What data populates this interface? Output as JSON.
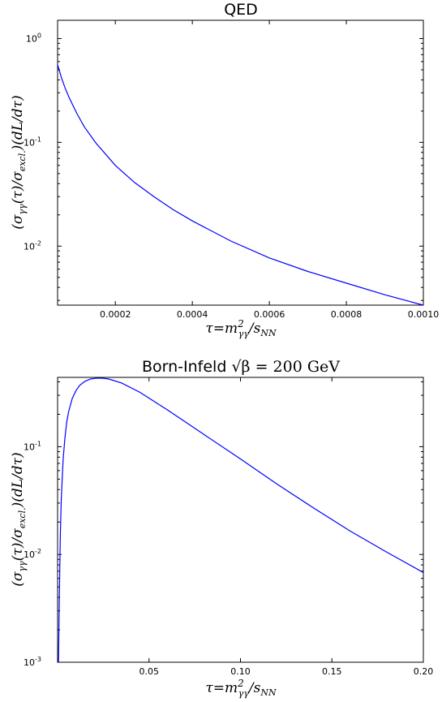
{
  "colors": {
    "series": "#0000ff",
    "frame": "#000000",
    "background": "#ffffff"
  },
  "chart_data": [
    {
      "type": "line",
      "title": "QED",
      "xlabel": "τ = m²γγ / sNN",
      "ylabel": "(σγγ(τ)/σexcl.)(dL/dτ)",
      "yscale": "log",
      "xlim": [
        5e-05,
        0.001
      ],
      "ylim": [
        0.0027,
        1.5
      ],
      "grid": false,
      "legend": "none",
      "x_ticks": [
        0.0002,
        0.0004,
        0.0006,
        0.0008,
        0.001
      ],
      "x_tick_labels": [
        "0.0002",
        "0.0004",
        "0.0006",
        "0.0008",
        "0.0010"
      ],
      "y_ticks": [
        0.01,
        0.1,
        1
      ],
      "y_tick_labels": [
        "10",
        "10",
        "10"
      ],
      "y_tick_exponents": [
        "-2",
        "-1",
        "0"
      ],
      "series": [
        {
          "color": "#0000ff",
          "x": [
            5e-05,
            6e-05,
            7e-05,
            8e-05,
            0.0001,
            0.00012,
            0.00015,
            0.0002,
            0.00025,
            0.0003,
            0.00035,
            0.0004,
            0.0005,
            0.0006,
            0.0007,
            0.0008,
            0.0009,
            0.001
          ],
          "y": [
            0.56,
            0.42,
            0.33,
            0.27,
            0.19,
            0.14,
            0.098,
            0.06,
            0.041,
            0.03,
            0.0225,
            0.0175,
            0.0112,
            0.0077,
            0.0057,
            0.0044,
            0.0034,
            0.0027
          ]
        }
      ]
    },
    {
      "type": "line",
      "title": "Born-Infeld",
      "title_math": "√β = 200 GeV",
      "xlabel": "τ = m²γγ / sNN",
      "ylabel": "(σγγ(τ)/σexcl.)(dL/dτ)",
      "yscale": "log",
      "xlim": [
        0,
        0.2
      ],
      "ylim": [
        0.001,
        0.44
      ],
      "grid": false,
      "legend": "none",
      "x_ticks": [
        0.05,
        0.1,
        0.15,
        0.2
      ],
      "x_tick_labels": [
        "0.05",
        "0.10",
        "0.15",
        "0.20"
      ],
      "y_ticks": [
        0.001,
        0.01,
        0.1
      ],
      "y_tick_labels": [
        "10",
        "10",
        "10"
      ],
      "y_tick_exponents": [
        "-3",
        "-2",
        "-1"
      ],
      "series": [
        {
          "color": "#0000ff",
          "x": [
            0.0005,
            0.001,
            0.0015,
            0.002,
            0.003,
            0.004,
            0.005,
            0.006,
            0.008,
            0.01,
            0.012,
            0.015,
            0.018,
            0.021,
            0.024,
            0.028,
            0.035,
            0.045,
            0.06,
            0.08,
            0.1,
            0.12,
            0.14,
            0.16,
            0.18,
            0.2
          ],
          "y": [
            0.001,
            0.0045,
            0.015,
            0.032,
            0.075,
            0.12,
            0.17,
            0.21,
            0.28,
            0.33,
            0.37,
            0.405,
            0.425,
            0.432,
            0.433,
            0.425,
            0.39,
            0.32,
            0.22,
            0.13,
            0.077,
            0.045,
            0.027,
            0.0165,
            0.0105,
            0.0068
          ]
        }
      ]
    }
  ]
}
